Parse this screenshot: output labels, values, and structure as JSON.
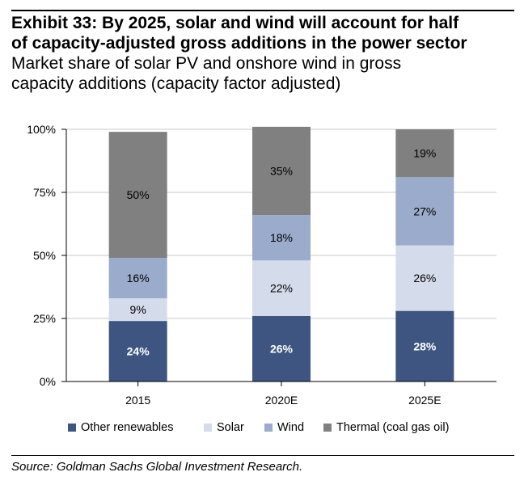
{
  "header": {
    "title_line1": "Exhibit 33: By 2025, solar and wind will account for half",
    "title_line2": "of capacity-adjusted gross additions in the power sector",
    "subtitle_line1": "Market share of solar PV and onshore wind in gross",
    "subtitle_line2": "capacity additions (capacity factor adjusted)"
  },
  "source": "Source: Goldman Sachs Global Investment Research.",
  "chart_data": {
    "type": "bar",
    "stacked": true,
    "categories": [
      "2015",
      "2020E",
      "2025E"
    ],
    "ylim": [
      0,
      100
    ],
    "yticks": [
      0,
      25,
      50,
      75,
      100
    ],
    "ytick_labels": [
      "0%",
      "25%",
      "50%",
      "75%",
      "100%"
    ],
    "grid": true,
    "legend_position": "bottom",
    "series": [
      {
        "name": "Other renewables",
        "color": "#3d5580",
        "label_color": "#ffffff",
        "values": [
          24,
          26,
          28
        ],
        "labels": [
          "24%",
          "26%",
          "28%"
        ]
      },
      {
        "name": "Solar",
        "color": "#d4dbeb",
        "label_color": "#000000",
        "values": [
          9,
          22,
          26
        ],
        "labels": [
          "9%",
          "22%",
          "26%"
        ]
      },
      {
        "name": "Wind",
        "color": "#9aabcc",
        "label_color": "#000000",
        "values": [
          16,
          18,
          27
        ],
        "labels": [
          "16%",
          "18%",
          "27%"
        ]
      },
      {
        "name": "Thermal (coal gas oil)",
        "color": "#808080",
        "label_color": "#000000",
        "values": [
          50,
          35,
          19
        ],
        "labels": [
          "50%",
          "35%",
          "19%"
        ]
      }
    ]
  }
}
